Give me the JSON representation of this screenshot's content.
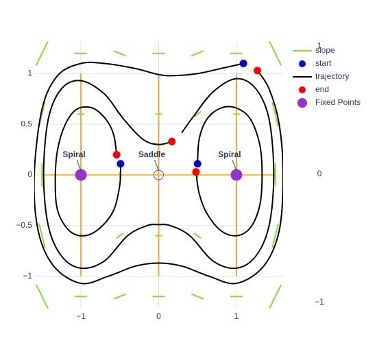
{
  "chart_data": {
    "type": "phase",
    "xlim": [
      -1.6,
      1.6
    ],
    "ylim": [
      -1.32,
      1.32
    ],
    "y2lim": [
      -1.05,
      1.04
    ],
    "xticks": [
      {
        "value": -1,
        "label": "−1"
      },
      0,
      1
    ],
    "yticks": [
      {
        "value": -1,
        "label": "−1"
      },
      {
        "value": -0.5,
        "label": "−0.5"
      },
      0,
      0.5,
      1
    ],
    "y2ticks": [
      {
        "value": -1,
        "label": "−1"
      },
      0,
      1
    ],
    "grid": true,
    "legend": "right",
    "shapes": [
      {
        "x": [
          -1,
          -1
        ],
        "y": [
          -1,
          1
        ],
        "color": "#f5a623"
      },
      {
        "x": [
          0,
          0
        ],
        "y": [
          -1,
          1
        ],
        "color": "#f5a623"
      },
      {
        "x": [
          1,
          1
        ],
        "y": [
          -1,
          1
        ],
        "color": "#f5a623"
      },
      {
        "x": [
          -1.5,
          1.5
        ],
        "y": [
          0,
          0
        ],
        "color": "#ffc61a"
      }
    ],
    "series": [
      {
        "name": "slope",
        "mode": "lines",
        "color": "#7fe12a",
        "x": [
          -1.428,
          -1.572,
          null,
          -1.464,
          -1.536,
          null,
          -1.5,
          -1.5,
          null,
          -1.536,
          -1.464,
          null,
          -1.572,
          -1.428,
          null,
          -0.928,
          -1.072,
          null,
          -0.964,
          -1.036,
          null,
          -1.036,
          -0.964,
          null,
          -1.072,
          -0.928,
          null,
          -0.428,
          -0.572,
          null,
          -0.464,
          -0.536,
          null,
          -0.5,
          -0.5,
          null,
          -0.536,
          -0.464,
          null,
          -0.572,
          -0.428,
          null,
          0.072,
          -0.072,
          null,
          0.036,
          -0.036,
          null,
          -0.036,
          0.036,
          null,
          -0.072,
          0.072,
          null,
          0.572,
          0.428,
          null,
          0.536,
          0.464,
          null,
          0.5,
          0.5,
          null,
          0.464,
          0.536,
          null,
          0.428,
          0.572,
          null,
          1.072,
          0.928,
          null,
          1.036,
          0.964,
          null,
          0.964,
          1.036,
          null,
          0.928,
          1.072,
          null,
          1.572,
          1.428,
          null,
          1.536,
          1.464,
          null,
          1.5,
          1.5,
          null,
          1.464,
          1.536,
          null,
          1.428,
          1.572
        ],
        "y": [
          -1.3125,
          -1.0875,
          null,
          -0.7125,
          -0.4875,
          null,
          -0.1125,
          0.1125,
          null,
          0.4875,
          0.7125,
          null,
          1.0875,
          1.3125,
          null,
          -1.2,
          -1.2,
          null,
          -0.6,
          -0.6,
          null,
          0.6,
          0.6,
          null,
          1.2,
          1.2,
          null,
          -1.1775,
          -1.2225,
          null,
          -0.5775,
          -0.6225,
          null,
          0.0225,
          -0.0225,
          null,
          0.6225,
          0.5775,
          null,
          1.2225,
          1.1775,
          null,
          -1.2,
          -1.2,
          null,
          -0.6,
          -0.6,
          null,
          0.6,
          0.6,
          null,
          1.2,
          1.2,
          null,
          -1.2225,
          -1.1775,
          null,
          -0.6225,
          -0.5775,
          null,
          -0.0225,
          0.0225,
          null,
          0.5775,
          0.6225,
          null,
          1.1775,
          1.2225,
          null,
          -1.2,
          -1.2,
          null,
          -0.6,
          -0.6,
          null,
          0.6,
          0.6,
          null,
          1.2,
          1.2,
          null,
          -1.0875,
          -1.3125,
          null,
          -0.4875,
          -0.7125,
          null,
          0.1125,
          -0.1125,
          null,
          0.7125,
          0.4875,
          null,
          1.3125,
          1.0875
        ]
      },
      {
        "name": "start",
        "mode": "markers",
        "color": "#0000ff",
        "x": [
          1.09,
          0.5,
          -0.49
        ],
        "y": [
          1.1,
          0.11,
          0.11
        ]
      },
      {
        "name": "trajectory",
        "mode": "lines",
        "color": "#000000",
        "line_shape": "spline",
        "x": [
          1.09,
          0.8,
          0.5,
          0.2,
          0,
          -0.3,
          -0.7,
          -1,
          -1.3,
          -1.5,
          -1.6,
          -1.55,
          -1.35,
          -1,
          -0.65,
          -0.3,
          0,
          0.3,
          0.65,
          1,
          1.35,
          1.55,
          1.6,
          1.55,
          1.42,
          1.27,
          null,
          0.3,
          0.45,
          0.7,
          1,
          1.25,
          1.42,
          1.48,
          1.42,
          1.25,
          1,
          0.7,
          0.4,
          0.15,
          0,
          -0.15,
          -0.4,
          -0.7,
          -1,
          -1.25,
          -1.42,
          -1.48,
          -1.42,
          -1.25,
          -1,
          -0.7,
          -0.45,
          -0.2,
          0,
          0.17,
          null,
          -0.49,
          -0.5,
          -0.58,
          -0.75,
          -0.95,
          -1.15,
          -1.3,
          -1.33,
          -1.3,
          -1.2,
          -1.05,
          -0.85,
          -0.68,
          -0.58,
          -0.54,
          null,
          0.5,
          0.52,
          0.62,
          0.8,
          1,
          1.18,
          1.3,
          1.33,
          1.3,
          1.18,
          1,
          0.8,
          0.62,
          0.52,
          0.48
        ],
        "y": [
          1.1,
          1.05,
          1,
          0.98,
          0.99,
          1.05,
          1.1,
          1.1,
          0.98,
          0.65,
          0,
          -0.55,
          -0.9,
          -1.07,
          -1,
          -0.9,
          -0.87,
          -0.9,
          -1,
          -1.07,
          -0.9,
          -0.55,
          0,
          0.5,
          0.85,
          1.03,
          null,
          0.42,
          0.58,
          0.82,
          0.95,
          0.85,
          0.55,
          0,
          -0.5,
          -0.8,
          -0.92,
          -0.85,
          -0.6,
          -0.5,
          -0.49,
          -0.5,
          -0.6,
          -0.85,
          -0.92,
          -0.8,
          -0.5,
          0,
          0.55,
          0.85,
          0.93,
          0.8,
          0.55,
          0.35,
          0.3,
          0.33,
          null,
          0.11,
          -0.1,
          -0.35,
          -0.52,
          -0.6,
          -0.55,
          -0.35,
          -0.05,
          0.25,
          0.5,
          0.65,
          0.66,
          0.55,
          0.4,
          0.2,
          null,
          0.11,
          0.35,
          0.55,
          0.66,
          0.66,
          0.55,
          0.3,
          0,
          -0.3,
          -0.52,
          -0.6,
          -0.55,
          -0.38,
          -0.18,
          0.03
        ]
      },
      {
        "name": "end",
        "mode": "markers",
        "color": "#ff0000",
        "x": [
          1.27,
          0.17,
          -0.54,
          0.48
        ],
        "y": [
          1.03,
          0.33,
          0.2,
          0.03
        ]
      },
      {
        "name": "Fixed Points",
        "mode": "markers",
        "color": "#9932cc",
        "size": "large",
        "x": [
          -1,
          0,
          1
        ],
        "y": [
          0,
          0,
          0
        ],
        "symbols": [
          "circle",
          "circle-open",
          "circle"
        ]
      }
    ],
    "annotations": [
      {
        "text": "Spiral",
        "x": -1,
        "y": 0
      },
      {
        "text": "Saddle",
        "x": 0,
        "y": 0
      },
      {
        "text": "Spiral",
        "x": 1,
        "y": 0
      }
    ]
  }
}
